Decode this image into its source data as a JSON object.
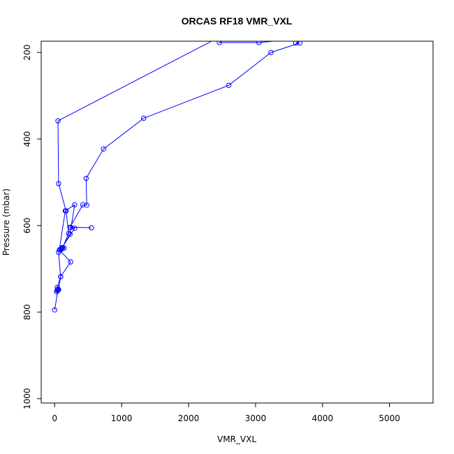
{
  "chart_data": {
    "type": "line",
    "title": "ORCAS RF18 VMR_VXL",
    "xlabel": "VMR_VXL",
    "ylabel": "Pressure (mbar)",
    "xlim": [
      -200,
      5650
    ],
    "ylim": [
      1010,
      174
    ],
    "y_reversed": true,
    "grid": false,
    "x_ticks": [
      0,
      1000,
      2000,
      3000,
      4000,
      5000
    ],
    "y_ticks": [
      200,
      400,
      600,
      800,
      1000
    ],
    "series": [
      {
        "color": "#0000ff",
        "points": [
          [
            2620,
            160
          ],
          [
            2460,
            177
          ],
          [
            3050,
            177
          ],
          [
            3780,
            167
          ],
          [
            3600,
            178
          ],
          [
            3660,
            178
          ],
          [
            3230,
            200
          ],
          [
            2600,
            276
          ],
          [
            1330,
            352
          ],
          [
            730,
            423
          ],
          [
            470,
            491
          ],
          [
            480,
            553
          ],
          [
            420,
            552
          ],
          [
            230,
            604
          ],
          [
            550,
            605
          ],
          [
            240,
            604
          ],
          [
            300,
            606
          ],
          [
            110,
            651
          ],
          [
            140,
            652
          ],
          [
            110,
            652
          ],
          [
            230,
            620
          ],
          [
            300,
            552
          ],
          [
            160,
            566
          ],
          [
            70,
            656
          ],
          [
            240,
            684
          ],
          [
            90,
            718
          ],
          [
            40,
            743
          ],
          [
            50,
            747
          ],
          [
            50,
            749
          ],
          [
            0,
            795
          ]
        ]
      },
      {
        "color": "#0000ff",
        "points": [
          [
            2700,
            150
          ],
          [
            2480,
            163
          ],
          [
            50,
            358
          ],
          [
            60,
            503
          ],
          [
            170,
            566
          ],
          [
            210,
            618
          ],
          [
            120,
            651
          ],
          [
            100,
            654
          ],
          [
            90,
            656
          ],
          [
            60,
            662
          ],
          [
            90,
            718
          ],
          [
            60,
            748
          ],
          [
            40,
            750
          ],
          [
            30,
            753
          ]
        ]
      }
    ]
  }
}
